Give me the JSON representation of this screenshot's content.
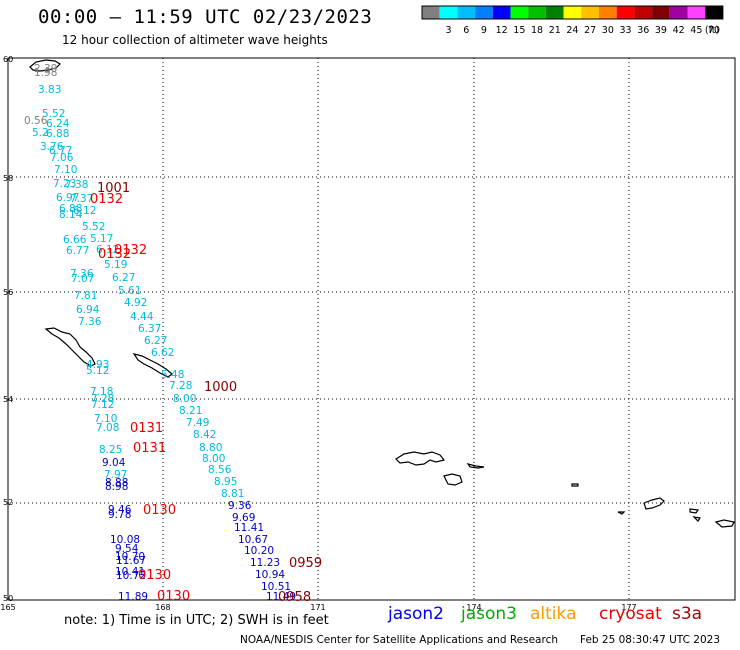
{
  "header": {
    "title": "00:00 – 11:59 UTC 02/23/2023",
    "subtitle": "12 hour collection of altimeter wave heights"
  },
  "legend": {
    "unit": "(ft)",
    "bins": [
      {
        "label": "",
        "color": "#808080"
      },
      {
        "label": "3",
        "color": "#00ffff"
      },
      {
        "label": "6",
        "color": "#00bfff"
      },
      {
        "label": "9",
        "color": "#0080ff"
      },
      {
        "label": "12",
        "color": "#0000ff"
      },
      {
        "label": "15",
        "color": "#00ff00"
      },
      {
        "label": "18",
        "color": "#00c000"
      },
      {
        "label": "21",
        "color": "#008000"
      },
      {
        "label": "24",
        "color": "#ffff00"
      },
      {
        "label": "27",
        "color": "#ffc000"
      },
      {
        "label": "30",
        "color": "#ff8000"
      },
      {
        "label": "33",
        "color": "#ff0000"
      },
      {
        "label": "36",
        "color": "#c00000"
      },
      {
        "label": "39",
        "color": "#800000"
      },
      {
        "label": "42",
        "color": "#a000a0"
      },
      {
        "label": "45",
        "color": "#ff40ff"
      },
      {
        "label": "70",
        "color": "#000000"
      }
    ]
  },
  "axes": {
    "lat_labels": [
      "60",
      "58",
      "56",
      "54",
      "52",
      "50"
    ],
    "lon_labels": [
      "165",
      "168",
      "171",
      "174",
      "177"
    ]
  },
  "colors": {
    "gray": "#808080",
    "cyan": "#00bbdd",
    "blue": "#0000cc",
    "red": "#ee0000",
    "darkred": "#880000"
  },
  "observations": [
    {
      "text": "2.39",
      "c": "gray"
    },
    {
      "text": "1.98",
      "c": "gray"
    },
    {
      "text": "3.83",
      "c": "cyan"
    },
    {
      "text": "5.52",
      "c": "cyan"
    },
    {
      "text": "0.56",
      "c": "gray"
    },
    {
      "text": "6.24",
      "c": "cyan"
    },
    {
      "text": "5.2",
      "c": "cyan"
    },
    {
      "text": "6.88",
      "c": "cyan"
    },
    {
      "text": "3.76",
      "c": "cyan"
    },
    {
      "text": "6.77",
      "c": "cyan"
    },
    {
      "text": "7.06",
      "c": "cyan"
    },
    {
      "text": "7.10",
      "c": "cyan"
    },
    {
      "text": "7.23",
      "c": "cyan"
    },
    {
      "text": "7.38",
      "c": "cyan"
    },
    {
      "text": "6.97",
      "c": "cyan"
    },
    {
      "text": "7.37",
      "c": "cyan"
    },
    {
      "text": "6.88",
      "c": "cyan"
    },
    {
      "text": "8.14",
      "c": "cyan"
    },
    {
      "text": "6.12",
      "c": "cyan"
    },
    {
      "text": "5.52",
      "c": "cyan"
    },
    {
      "text": "6.66",
      "c": "cyan"
    },
    {
      "text": "5.17",
      "c": "cyan"
    },
    {
      "text": "6.77",
      "c": "cyan"
    },
    {
      "text": "6.12",
      "c": "cyan"
    },
    {
      "text": "5.19",
      "c": "cyan"
    },
    {
      "text": "7.36",
      "c": "cyan"
    },
    {
      "text": "7.07",
      "c": "cyan"
    },
    {
      "text": "6.27",
      "c": "cyan"
    },
    {
      "text": "7.81",
      "c": "cyan"
    },
    {
      "text": "5.61",
      "c": "cyan"
    },
    {
      "text": "6.94",
      "c": "cyan"
    },
    {
      "text": "4.92",
      "c": "cyan"
    },
    {
      "text": "7.36",
      "c": "cyan"
    },
    {
      "text": "4.44",
      "c": "cyan"
    },
    {
      "text": "6.37",
      "c": "cyan"
    },
    {
      "text": "6.27",
      "c": "cyan"
    },
    {
      "text": "6.62",
      "c": "cyan"
    },
    {
      "text": "4.93",
      "c": "cyan"
    },
    {
      "text": "5.12",
      "c": "cyan"
    },
    {
      "text": "5.48",
      "c": "cyan"
    },
    {
      "text": "7.28",
      "c": "cyan"
    },
    {
      "text": "7.18",
      "c": "cyan"
    },
    {
      "text": "7.28",
      "c": "cyan"
    },
    {
      "text": "7.12",
      "c": "cyan"
    },
    {
      "text": "8.00",
      "c": "cyan"
    },
    {
      "text": "8.21",
      "c": "cyan"
    },
    {
      "text": "7.10",
      "c": "cyan"
    },
    {
      "text": "7.49",
      "c": "cyan"
    },
    {
      "text": "7.08",
      "c": "cyan"
    },
    {
      "text": "8.42",
      "c": "cyan"
    },
    {
      "text": "8.25",
      "c": "cyan"
    },
    {
      "text": "8.80",
      "c": "cyan"
    },
    {
      "text": "9.04",
      "c": "blue"
    },
    {
      "text": "8.00",
      "c": "cyan"
    },
    {
      "text": "8.56",
      "c": "cyan"
    },
    {
      "text": "7.97",
      "c": "cyan"
    },
    {
      "text": "8.95",
      "c": "cyan"
    },
    {
      "text": "8.88",
      "c": "blue"
    },
    {
      "text": "8.98",
      "c": "blue"
    },
    {
      "text": "8.81",
      "c": "cyan"
    },
    {
      "text": "9.36",
      "c": "blue"
    },
    {
      "text": "9.46",
      "c": "blue"
    },
    {
      "text": "9.78",
      "c": "blue"
    },
    {
      "text": "9.69",
      "c": "blue"
    },
    {
      "text": "11.41",
      "c": "blue"
    },
    {
      "text": "10.08",
      "c": "blue"
    },
    {
      "text": "10.67",
      "c": "blue"
    },
    {
      "text": "9.54",
      "c": "blue"
    },
    {
      "text": "10.20",
      "c": "blue"
    },
    {
      "text": "10.70",
      "c": "blue"
    },
    {
      "text": "11.67",
      "c": "blue"
    },
    {
      "text": "11.23",
      "c": "blue"
    },
    {
      "text": "10.41",
      "c": "blue"
    },
    {
      "text": "10.72",
      "c": "blue"
    },
    {
      "text": "10.94",
      "c": "blue"
    },
    {
      "text": "10.51",
      "c": "blue"
    },
    {
      "text": "11.89",
      "c": "blue"
    },
    {
      "text": "11.49",
      "c": "blue"
    }
  ],
  "pass_times": [
    {
      "text": "1001",
      "c": "darkred"
    },
    {
      "text": "0132",
      "c": "red"
    },
    {
      "text": "0132",
      "c": "red"
    },
    {
      "text": "0132",
      "c": "red"
    },
    {
      "text": "1000",
      "c": "darkred"
    },
    {
      "text": "0131",
      "c": "red"
    },
    {
      "text": "0131",
      "c": "red"
    },
    {
      "text": "0130",
      "c": "red"
    },
    {
      "text": "0959",
      "c": "darkred"
    },
    {
      "text": "0130",
      "c": "red"
    },
    {
      "text": "0130",
      "c": "red"
    },
    {
      "text": "0958",
      "c": "darkred"
    }
  ],
  "footer": {
    "note": "note: 1) Time is in UTC; 2) SWH is in feet",
    "credit": "NOAA/NESDIS Center for Satellite Applications and Research",
    "stamp": "Feb 25 08:30:47 UTC 2023",
    "missions": [
      {
        "name": "jason2",
        "color": "#0000ee"
      },
      {
        "name": "jason3",
        "color": "#00aa00"
      },
      {
        "name": "altika",
        "color": "#ff9900"
      },
      {
        "name": "cryosat",
        "color": "#ee0000"
      },
      {
        "name": "s3a",
        "color": "#aa0000"
      }
    ]
  }
}
